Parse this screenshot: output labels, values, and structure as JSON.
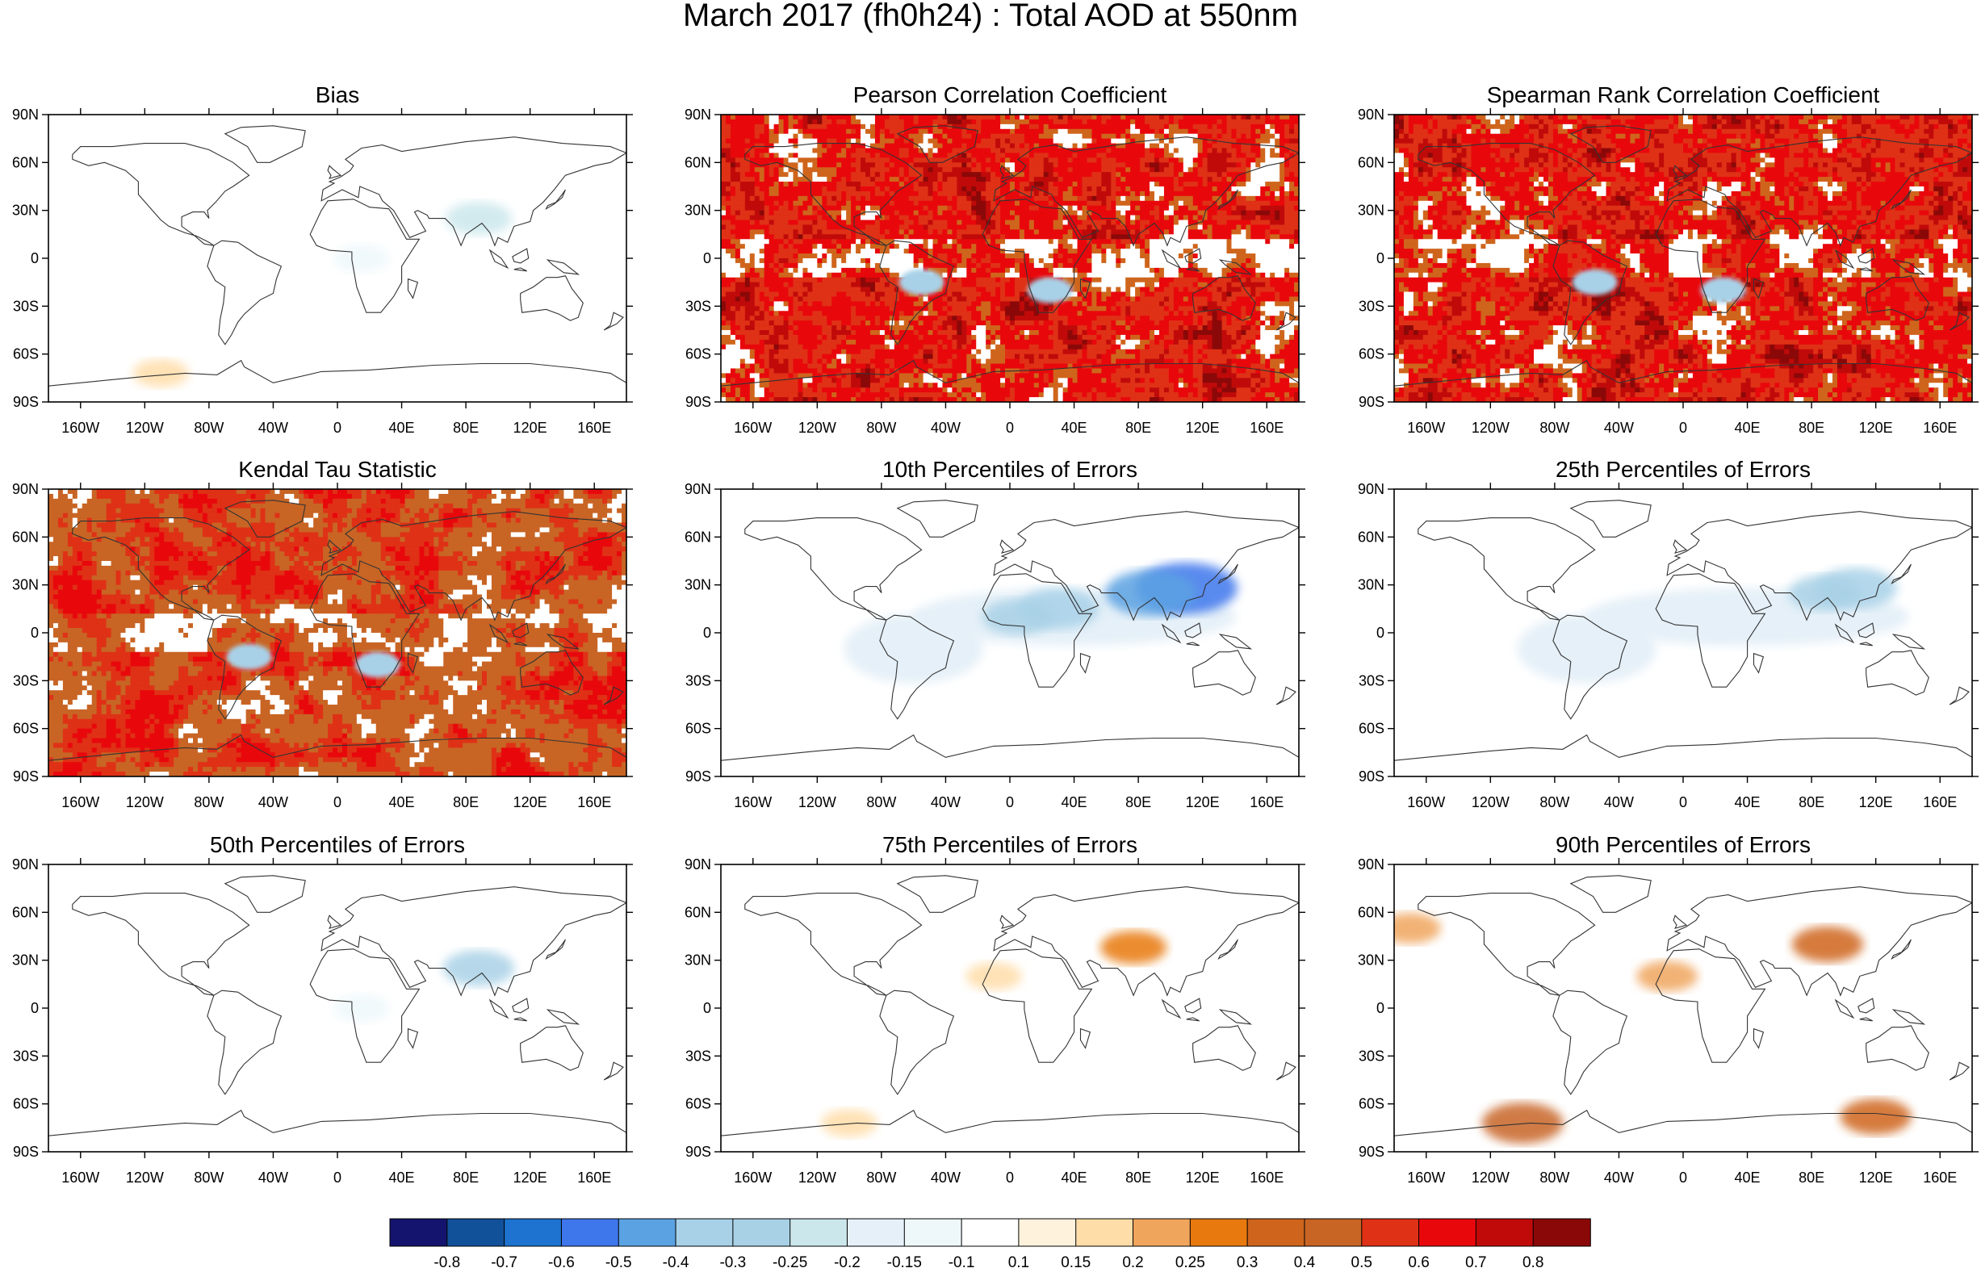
{
  "title": "March 2017 (fh0h24) : Total AOD at 550nm",
  "lat_labels": [
    "90N",
    "60N",
    "30N",
    "0",
    "30S",
    "60S",
    "90S"
  ],
  "lon_labels": [
    "160W",
    "120W",
    "80W",
    "40W",
    "0",
    "40E",
    "80E",
    "120E",
    "160E"
  ],
  "colorbar": {
    "labels": [
      "-0.8",
      "-0.7",
      "-0.6",
      "-0.5",
      "-0.4",
      "-0.3",
      "-0.25",
      "-0.2",
      "-0.15",
      "-0.1",
      "0.1",
      "0.15",
      "0.2",
      "0.25",
      "0.3",
      "0.4",
      "0.5",
      "0.6",
      "0.7",
      "0.8"
    ],
    "colors": [
      "#14146e",
      "#11519a",
      "#1d73cf",
      "#3e76ec",
      "#5ba2e2",
      "#a8d1e8",
      "#a9d1e6",
      "#cbe7ec",
      "#e5f0f8",
      "#eef8fb",
      "#ffffff",
      "#fff2dc",
      "#ffdda9",
      "#f0a55d",
      "#e8790f",
      "#cf651c",
      "#c86525",
      "#df3116",
      "#e8080c",
      "#c00a0a",
      "#8b0808"
    ]
  },
  "chart_data": [
    {
      "type": "heatmap",
      "title": "Bias",
      "kind": "neg-light",
      "xlabel": "",
      "ylabel": "",
      "xlim": [
        -180,
        180
      ],
      "ylim": [
        -90,
        90
      ],
      "hotspots": [
        {
          "lon": 88,
          "lat": 25,
          "level": -0.25
        },
        {
          "lon": 15,
          "lat": 0,
          "level": -0.15
        },
        {
          "lon": -110,
          "lat": -72,
          "level": 0.15
        }
      ]
    },
    {
      "type": "heatmap",
      "title": "Pearson Correlation Coefficient",
      "kind": "corr",
      "xlabel": "",
      "ylabel": "",
      "xlim": [
        -180,
        180
      ],
      "ylim": [
        -90,
        90
      ]
    },
    {
      "type": "heatmap",
      "title": "Spearman Rank Correlation Coefficient",
      "kind": "corr",
      "xlabel": "",
      "ylabel": "",
      "xlim": [
        -180,
        180
      ],
      "ylim": [
        -90,
        90
      ]
    },
    {
      "type": "heatmap",
      "title": "Kendal Tau Statistic",
      "kind": "tau",
      "xlabel": "",
      "ylabel": "",
      "xlim": [
        -180,
        180
      ],
      "ylim": [
        -90,
        90
      ]
    },
    {
      "type": "heatmap",
      "title": "10th Percentiles of Errors",
      "kind": "neg-strong",
      "xlabel": "",
      "ylabel": "",
      "xlim": [
        -180,
        180
      ],
      "ylim": [
        -90,
        90
      ],
      "hotspots": [
        {
          "lon": 110,
          "lat": 28,
          "level": -0.6
        },
        {
          "lon": 88,
          "lat": 25,
          "level": -0.5
        },
        {
          "lon": 30,
          "lat": 15,
          "level": -0.4
        },
        {
          "lon": 5,
          "lat": 10,
          "level": -0.3
        }
      ]
    },
    {
      "type": "heatmap",
      "title": "25th Percentiles of Errors",
      "kind": "neg-mid",
      "xlabel": "",
      "ylabel": "",
      "xlim": [
        -180,
        180
      ],
      "ylim": [
        -90,
        90
      ],
      "hotspots": [
        {
          "lon": 108,
          "lat": 28,
          "level": -0.4
        },
        {
          "lon": 88,
          "lat": 25,
          "level": -0.3
        },
        {
          "lon": 20,
          "lat": 5,
          "level": -0.2
        }
      ]
    },
    {
      "type": "heatmap",
      "title": "50th Percentiles of Errors",
      "kind": "neg-light",
      "xlabel": "",
      "ylabel": "",
      "xlim": [
        -180,
        180
      ],
      "ylim": [
        -90,
        90
      ],
      "hotspots": [
        {
          "lon": 88,
          "lat": 25,
          "level": -0.3
        },
        {
          "lon": 15,
          "lat": 0,
          "level": -0.15
        }
      ]
    },
    {
      "type": "heatmap",
      "title": "75th Percentiles of Errors",
      "kind": "pos-light",
      "xlabel": "",
      "ylabel": "",
      "xlim": [
        -180,
        180
      ],
      "ylim": [
        -90,
        90
      ],
      "hotspots": [
        {
          "lon": -10,
          "lat": 20,
          "level": 0.15
        },
        {
          "lon": 77,
          "lat": 38,
          "level": 0.25
        },
        {
          "lon": -100,
          "lat": -72,
          "level": 0.15
        }
      ]
    },
    {
      "type": "heatmap",
      "title": "90th Percentiles of Errors",
      "kind": "pos-strong",
      "xlabel": "",
      "ylabel": "",
      "xlim": [
        -180,
        180
      ],
      "ylim": [
        -90,
        90
      ],
      "hotspots": [
        {
          "lon": -100,
          "lat": -72,
          "level": 0.4
        },
        {
          "lon": 120,
          "lat": -68,
          "level": 0.3
        },
        {
          "lon": 90,
          "lat": 40,
          "level": 0.3
        },
        {
          "lon": -10,
          "lat": 20,
          "level": 0.2
        },
        {
          "lon": -170,
          "lat": 50,
          "level": 0.2
        }
      ]
    }
  ]
}
